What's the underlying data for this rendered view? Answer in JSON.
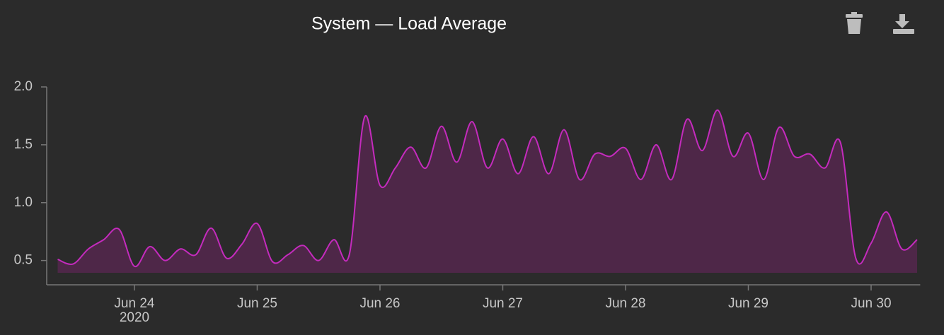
{
  "chart_data": {
    "type": "area",
    "title": "System — Load Average",
    "year_label": "2020",
    "x": [
      23.375,
      23.5,
      23.625,
      23.75,
      23.875,
      24.0,
      24.125,
      24.25,
      24.375,
      24.5,
      24.625,
      24.75,
      24.875,
      25.0,
      25.125,
      25.25,
      25.375,
      25.5,
      25.625,
      25.75,
      25.875,
      26.0,
      26.125,
      26.25,
      26.375,
      26.5,
      26.625,
      26.75,
      26.875,
      27.0,
      27.125,
      27.25,
      27.375,
      27.5,
      27.625,
      27.75,
      27.875,
      28.0,
      28.125,
      28.25,
      28.375,
      28.5,
      28.625,
      28.75,
      28.875,
      29.0,
      29.125,
      29.25,
      29.375,
      29.5,
      29.625,
      29.75,
      29.875,
      30.0,
      30.125,
      30.25,
      30.375
    ],
    "series": [
      {
        "name": "Load Average",
        "color": "#c42bbd",
        "fill": "#4e2748",
        "values": [
          0.51,
          0.47,
          0.6,
          0.68,
          0.77,
          0.45,
          0.62,
          0.5,
          0.6,
          0.55,
          0.78,
          0.52,
          0.64,
          0.82,
          0.49,
          0.55,
          0.63,
          0.5,
          0.68,
          0.55,
          1.74,
          1.15,
          1.3,
          1.48,
          1.3,
          1.66,
          1.35,
          1.7,
          1.3,
          1.55,
          1.25,
          1.57,
          1.25,
          1.63,
          1.2,
          1.42,
          1.4,
          1.47,
          1.2,
          1.5,
          1.2,
          1.72,
          1.45,
          1.8,
          1.4,
          1.6,
          1.2,
          1.65,
          1.4,
          1.42,
          1.3,
          1.52,
          0.52,
          0.65,
          0.92,
          0.6,
          0.68
        ]
      }
    ],
    "xlim": [
      23.3,
      30.4
    ],
    "xticks": [
      {
        "value": 24,
        "label": "Jun 24"
      },
      {
        "value": 25,
        "label": "Jun 25"
      },
      {
        "value": 26,
        "label": "Jun 26"
      },
      {
        "value": 27,
        "label": "Jun 27"
      },
      {
        "value": 28,
        "label": "Jun 28"
      },
      {
        "value": 29,
        "label": "Jun 29"
      },
      {
        "value": 30,
        "label": "Jun 30"
      }
    ],
    "ylim": [
      0.29,
      2.0
    ],
    "yticks": [
      0.5,
      {
        "value": 1,
        "label": "1.0"
      },
      1.5,
      {
        "value": 2,
        "label": "2.0"
      }
    ]
  }
}
